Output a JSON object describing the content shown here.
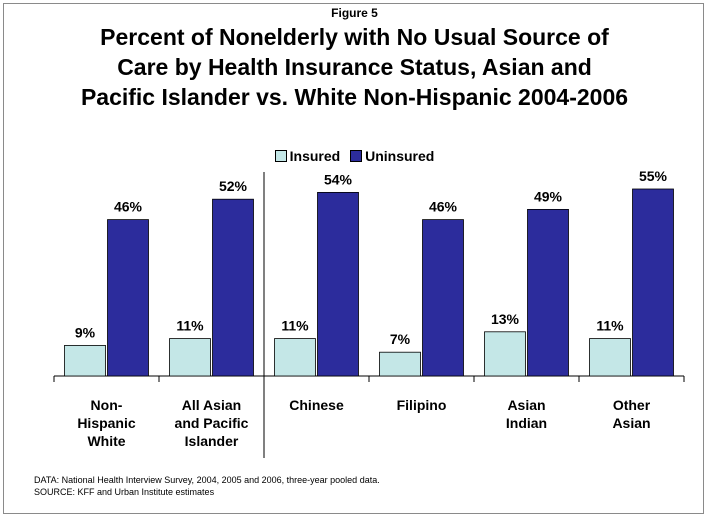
{
  "figure_label": "Figure 5",
  "title_lines": [
    "Percent of Nonelderly with No Usual Source of",
    "Care by Health Insurance Status, Asian and",
    "Pacific Islander vs. White Non-Hispanic 2004-2006"
  ],
  "notes": {
    "data": "DATA: National Health Interview Survey, 2004, 2005 and 2006, three-year pooled data.",
    "source": "SOURCE: KFF and Urban Institute estimates"
  },
  "colors": {
    "insured": "#c4e7e7",
    "uninsured": "#2c2c9c"
  },
  "chart_data": {
    "type": "bar",
    "categories": [
      [
        "Non-",
        "Hispanic",
        "White"
      ],
      [
        "All Asian",
        "and Pacific",
        "Islander"
      ],
      [
        "Chinese"
      ],
      [
        "Filipino"
      ],
      [
        "Asian",
        "Indian"
      ],
      [
        "Other",
        "Asian"
      ]
    ],
    "series": [
      {
        "name": "Insured",
        "values": [
          9,
          11,
          11,
          7,
          13,
          11
        ],
        "labels": [
          "9%",
          "11%",
          "11%",
          "7%",
          "13%",
          "11%"
        ]
      },
      {
        "name": "Uninsured",
        "values": [
          46,
          52,
          54,
          46,
          49,
          55
        ],
        "labels": [
          "46%",
          "52%",
          "54%",
          "46%",
          "49%",
          "55%"
        ]
      }
    ],
    "ylim": [
      0,
      60
    ],
    "grid": false,
    "legend_position": "top-center",
    "separator_after_category": 1
  }
}
